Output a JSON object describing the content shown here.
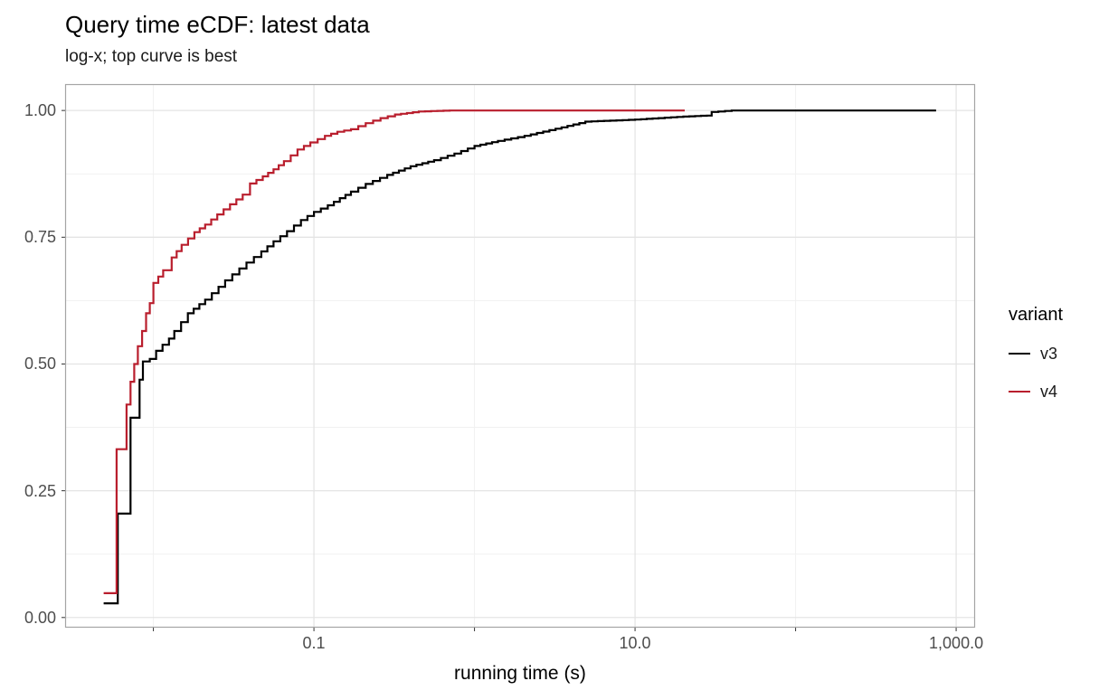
{
  "chart_data": {
    "type": "line",
    "subtype": "ecdf-step",
    "title": "Query time eCDF: latest data",
    "subtitle": "log-x; top curve is best",
    "xlabel": "running time (s)",
    "ylabel": "",
    "legend_title": "variant",
    "legend_position": "right",
    "x_scale": "log10",
    "xlim": [
      0.00282,
      1312
    ],
    "ylim": [
      -0.02,
      1.052
    ],
    "x_breaks": [
      {
        "value": 0.1,
        "label": "0.1"
      },
      {
        "value": 10,
        "label": "10.0"
      },
      {
        "value": 1000,
        "label": "1,000.0"
      }
    ],
    "x_minor_breaks": [
      0.01,
      1,
      100
    ],
    "y_breaks": [
      {
        "value": 0.0,
        "label": "0.00"
      },
      {
        "value": 0.25,
        "label": "0.25"
      },
      {
        "value": 0.5,
        "label": "0.50"
      },
      {
        "value": 0.75,
        "label": "0.75"
      },
      {
        "value": 1.0,
        "label": "1.00"
      }
    ],
    "y_minor_breaks": [
      0.125,
      0.375,
      0.625,
      0.875
    ],
    "grid": true,
    "style": {
      "grid_major_color": "#e4e4e4",
      "grid_minor_color": "#f1f1f1",
      "panel_border_color": "#a5a5a5",
      "tick_color": "#333333",
      "tick_label_color": "#4d4d4d",
      "text_color": "#000000"
    },
    "series": [
      {
        "name": "v3",
        "color": "#000000",
        "points": [
          [
            0.0049,
            0.028
          ],
          [
            0.006,
            0.028
          ],
          [
            0.006,
            0.205
          ],
          [
            0.0072,
            0.205
          ],
          [
            0.0072,
            0.394
          ],
          [
            0.0082,
            0.394
          ],
          [
            0.0082,
            0.469
          ],
          [
            0.0086,
            0.469
          ],
          [
            0.0086,
            0.505
          ],
          [
            0.0095,
            0.51
          ],
          [
            0.0104,
            0.526
          ],
          [
            0.0125,
            0.55
          ],
          [
            0.0135,
            0.565
          ],
          [
            0.0164,
            0.6
          ],
          [
            0.021,
            0.627
          ],
          [
            0.028,
            0.665
          ],
          [
            0.038,
            0.7
          ],
          [
            0.047,
            0.722
          ],
          [
            0.056,
            0.742
          ],
          [
            0.068,
            0.762
          ],
          [
            0.083,
            0.784
          ],
          [
            0.1,
            0.8
          ],
          [
            0.122,
            0.813
          ],
          [
            0.145,
            0.827
          ],
          [
            0.17,
            0.84
          ],
          [
            0.21,
            0.855
          ],
          [
            0.286,
            0.873
          ],
          [
            0.4,
            0.89
          ],
          [
            0.56,
            0.902
          ],
          [
            0.75,
            0.915
          ],
          [
            1.0,
            0.93
          ],
          [
            1.4,
            0.94
          ],
          [
            2.05,
            0.95
          ],
          [
            3.2,
            0.964
          ],
          [
            4.9,
            0.978
          ],
          [
            7.0,
            0.98
          ],
          [
            10.0,
            0.982
          ],
          [
            14.0,
            0.985
          ],
          [
            20.0,
            0.988
          ],
          [
            28.0,
            0.99
          ],
          [
            30.0,
            0.997
          ],
          [
            40.0,
            1.0
          ],
          [
            750.0,
            1.0
          ]
        ]
      },
      {
        "name": "v4",
        "color": "#b91e2d",
        "points": [
          [
            0.0049,
            0.048
          ],
          [
            0.0059,
            0.048
          ],
          [
            0.0059,
            0.332
          ],
          [
            0.0068,
            0.332
          ],
          [
            0.0068,
            0.42
          ],
          [
            0.0072,
            0.42
          ],
          [
            0.0072,
            0.465
          ],
          [
            0.0076,
            0.465
          ],
          [
            0.0076,
            0.5
          ],
          [
            0.008,
            0.535
          ],
          [
            0.0085,
            0.565
          ],
          [
            0.009,
            0.6
          ],
          [
            0.0095,
            0.62
          ],
          [
            0.01,
            0.66
          ],
          [
            0.0115,
            0.685
          ],
          [
            0.013,
            0.71
          ],
          [
            0.015,
            0.735
          ],
          [
            0.018,
            0.76
          ],
          [
            0.021,
            0.775
          ],
          [
            0.025,
            0.795
          ],
          [
            0.03,
            0.815
          ],
          [
            0.036,
            0.834
          ],
          [
            0.04,
            0.856
          ],
          [
            0.048,
            0.87
          ],
          [
            0.056,
            0.884
          ],
          [
            0.065,
            0.9
          ],
          [
            0.079,
            0.923
          ],
          [
            0.095,
            0.937
          ],
          [
            0.117,
            0.95
          ],
          [
            0.14,
            0.958
          ],
          [
            0.17,
            0.963
          ],
          [
            0.21,
            0.975
          ],
          [
            0.26,
            0.985
          ],
          [
            0.32,
            0.992
          ],
          [
            0.45,
            0.998
          ],
          [
            0.7,
            1.0
          ],
          [
            20.4,
            1.0
          ]
        ]
      }
    ]
  }
}
